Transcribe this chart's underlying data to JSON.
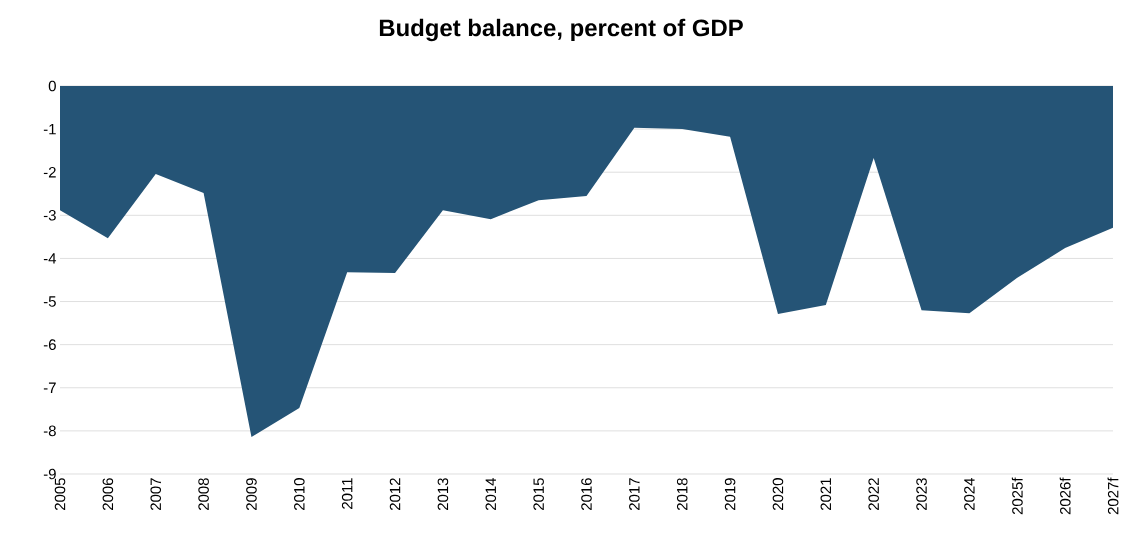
{
  "chart_data": {
    "type": "area",
    "title": "Budget balance, percent of GDP",
    "categories": [
      "2005",
      "2006",
      "2007",
      "2008",
      "2009",
      "2010",
      "2011",
      "2012",
      "2013",
      "2014",
      "2015",
      "2016",
      "2017",
      "2018",
      "2019",
      "2020",
      "2021",
      "2022",
      "2023",
      "2024",
      "2025f",
      "2026f",
      "2027f"
    ],
    "series": [
      {
        "color": "#255476",
        "values": [
          -2.88,
          -3.53,
          -2.04,
          -2.48,
          -8.14,
          -7.47,
          -4.32,
          -4.34,
          -2.88,
          -3.09,
          -2.65,
          -2.55,
          -0.97,
          -1.0,
          -1.18,
          -5.29,
          -5.08,
          -1.67,
          -5.2,
          -5.27,
          -4.45,
          -3.76,
          -3.29
        ]
      }
    ],
    "ylim": [
      -9,
      0
    ],
    "yticks": [
      0,
      -1,
      -2,
      -3,
      -4,
      -5,
      -6,
      -7,
      -8,
      -9
    ],
    "grid": "y"
  }
}
